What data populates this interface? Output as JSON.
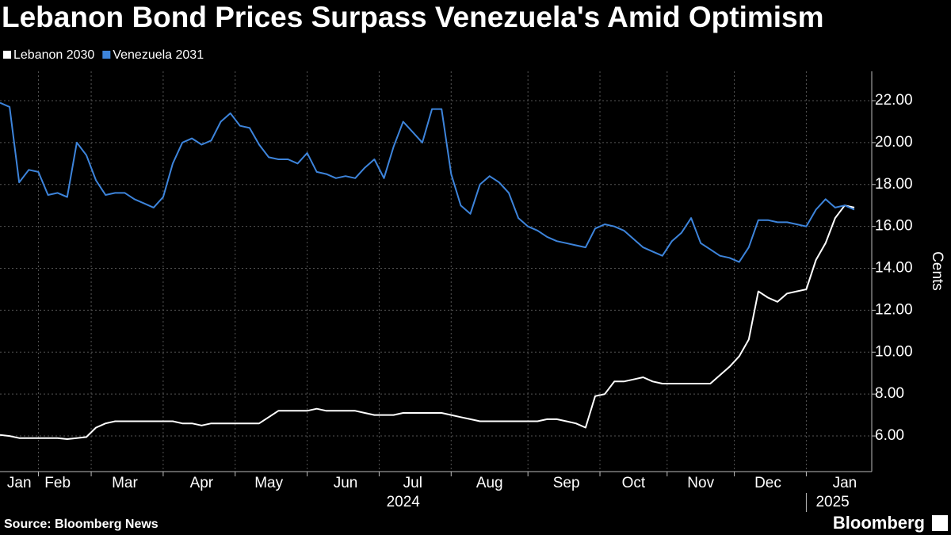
{
  "chart_data": {
    "type": "line",
    "title": "Lebanon Bond Prices Surpass Venezuela's Amid Optimism",
    "y_label": "Cents",
    "source": "Source: Bloomberg News",
    "brand": "Bloomberg",
    "year_labels": [
      "2024",
      "2025"
    ],
    "categories": [
      null,
      null,
      "Jan",
      null,
      null,
      null,
      "Feb",
      null,
      null,
      null,
      null,
      null,
      null,
      "Mar",
      null,
      null,
      null,
      null,
      null,
      null,
      null,
      "Apr",
      null,
      null,
      null,
      null,
      null,
      null,
      "May",
      null,
      null,
      null,
      null,
      null,
      null,
      null,
      "Jun",
      null,
      null,
      null,
      null,
      null,
      null,
      "Jul",
      null,
      null,
      null,
      null,
      null,
      null,
      null,
      "Aug",
      null,
      null,
      null,
      null,
      null,
      null,
      null,
      "Sep",
      null,
      null,
      null,
      null,
      null,
      null,
      "Oct",
      null,
      null,
      null,
      null,
      null,
      null,
      "Nov",
      null,
      null,
      null,
      null,
      null,
      null,
      "Dec",
      null,
      null,
      null,
      null,
      null,
      null,
      null,
      "Jan",
      null
    ],
    "series": [
      {
        "name": "Lebanon 2030",
        "color": "#ffffff",
        "values": [
          6.05,
          6.0,
          5.9,
          5.9,
          5.9,
          5.9,
          5.9,
          5.85,
          5.9,
          5.95,
          6.4,
          6.6,
          6.7,
          6.7,
          6.7,
          6.7,
          6.7,
          6.7,
          6.7,
          6.6,
          6.6,
          6.5,
          6.6,
          6.6,
          6.6,
          6.6,
          6.6,
          6.6,
          6.9,
          7.2,
          7.2,
          7.2,
          7.2,
          7.3,
          7.2,
          7.2,
          7.2,
          7.2,
          7.1,
          7.0,
          7.0,
          7.0,
          7.1,
          7.1,
          7.1,
          7.1,
          7.1,
          7.0,
          6.9,
          6.8,
          6.7,
          6.7,
          6.7,
          6.7,
          6.7,
          6.7,
          6.7,
          6.8,
          6.8,
          6.7,
          6.6,
          6.4,
          7.9,
          8.0,
          8.6,
          8.6,
          8.7,
          8.8,
          8.6,
          8.5,
          8.5,
          8.5,
          8.5,
          8.5,
          8.5,
          8.9,
          9.3,
          9.8,
          10.6,
          12.9,
          12.6,
          12.4,
          12.8,
          12.9,
          13.0,
          14.4,
          15.2,
          16.4,
          17.0,
          16.9
        ]
      },
      {
        "name": "Venezuela 2031",
        "color": "#3d84db",
        "values": [
          21.9,
          21.7,
          18.1,
          18.7,
          18.6,
          17.5,
          17.6,
          17.4,
          20.0,
          19.4,
          18.2,
          17.5,
          17.6,
          17.6,
          17.3,
          17.1,
          16.9,
          17.4,
          19.0,
          20.0,
          20.2,
          19.9,
          20.1,
          21.0,
          21.4,
          20.8,
          20.7,
          19.9,
          19.3,
          19.2,
          19.2,
          19.0,
          19.5,
          18.6,
          18.5,
          18.3,
          18.4,
          18.3,
          18.8,
          19.2,
          18.3,
          19.8,
          21.0,
          20.5,
          20.0,
          21.6,
          21.6,
          18.5,
          17.0,
          16.6,
          18.0,
          18.4,
          18.1,
          17.6,
          16.4,
          16.0,
          15.8,
          15.5,
          15.3,
          15.2,
          15.1,
          15.0,
          15.9,
          16.1,
          16.0,
          15.8,
          15.4,
          15.0,
          14.8,
          14.6,
          15.3,
          15.7,
          16.4,
          15.2,
          14.9,
          14.6,
          14.5,
          14.3,
          15.0,
          16.3,
          16.3,
          16.2,
          16.2,
          16.1,
          16.0,
          16.8,
          17.3,
          16.9,
          17.0,
          16.8
        ]
      }
    ],
    "ylim": [
      4.3,
      23.4
    ],
    "yticks": [
      {
        "value": 6,
        "label": "6.00"
      },
      {
        "value": 8,
        "label": "8.00"
      },
      {
        "value": 10,
        "label": "10.00"
      },
      {
        "value": 12,
        "label": "12.00"
      },
      {
        "value": 14,
        "label": "14.00"
      },
      {
        "value": 16,
        "label": "16.00"
      },
      {
        "value": 18,
        "label": "18.00"
      },
      {
        "value": 20,
        "label": "20.00"
      },
      {
        "value": 22,
        "label": "22.00"
      }
    ],
    "grid": true
  }
}
